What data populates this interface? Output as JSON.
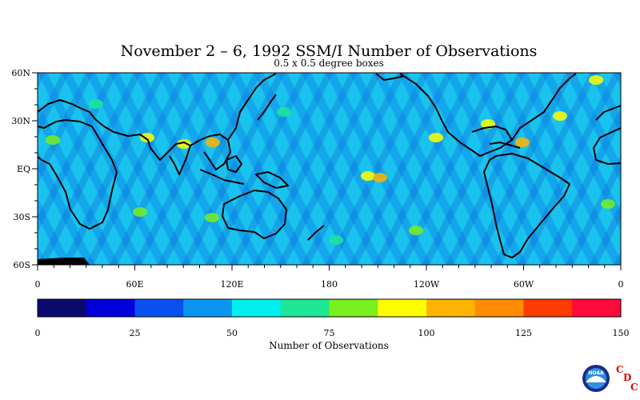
{
  "title": "November 2 – 6, 1992 SSM/I Number of Observations",
  "subtitle": "0.5 x 0.5 degree boxes",
  "map": {
    "projection": "cylindrical equidistant",
    "lat_range": [
      -60,
      60
    ],
    "lon_range": [
      0,
      360
    ],
    "lat_labels": [
      {
        "lat": 60,
        "label": "60N"
      },
      {
        "lat": 30,
        "label": "30N"
      },
      {
        "lat": 0,
        "label": "EQ"
      },
      {
        "lat": -30,
        "label": "30S"
      },
      {
        "lat": -60,
        "label": "60S"
      }
    ],
    "lon_labels": [
      {
        "lon": 0,
        "label": "0"
      },
      {
        "lon": 60,
        "label": "60E"
      },
      {
        "lon": 120,
        "label": "120E"
      },
      {
        "lon": 180,
        "label": "180"
      },
      {
        "lon": 240,
        "label": "120W"
      },
      {
        "lon": 300,
        "label": "60W"
      },
      {
        "lon": 360,
        "label": "0"
      }
    ]
  },
  "colorbar": {
    "label": "Number of Observations",
    "min": 0,
    "max": 150,
    "tick_labels": [
      "0",
      "25",
      "50",
      "75",
      "100",
      "125",
      "150"
    ],
    "colors": [
      "#0a0a6e",
      "#0000dc",
      "#0a50f0",
      "#0a96f0",
      "#00f0f0",
      "#1ee696",
      "#78f01e",
      "#ffff00",
      "#ffb400",
      "#ff8c00",
      "#ff3c00",
      "#ff0a3c"
    ]
  },
  "logo": {
    "noaa_text": "NOAA",
    "cdc_letters": [
      "C",
      "D",
      "C"
    ]
  }
}
